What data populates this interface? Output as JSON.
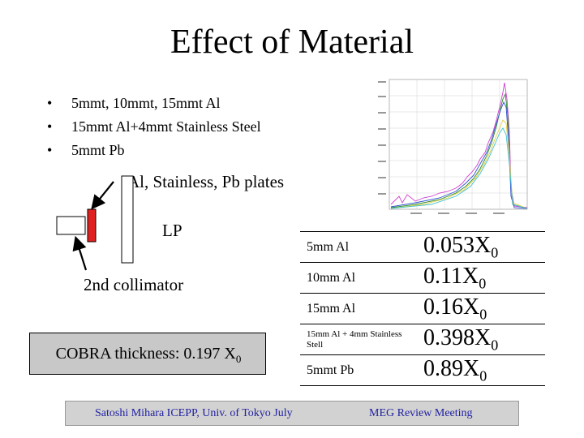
{
  "slide": {
    "title": "Effect of Material",
    "bullets": [
      "5mmt, 10mmt, 15mmt Al",
      "15mmt Al+4mmt Stainless Steel",
      "5mmt Pb"
    ],
    "bullet_glyph": "•"
  },
  "diagram": {
    "plates_label": "Al, Stainless, Pb plates",
    "lp_label": "LP",
    "collimator_label": "2nd collimator",
    "plate_color": "#e02020"
  },
  "cobra": {
    "text": "COBRA thickness: 0.197 X",
    "sub": "0"
  },
  "materials": [
    {
      "name": "5mm Al",
      "value": "0.053X",
      "sub": "0"
    },
    {
      "name": "10mm Al",
      "value": "0.11X",
      "sub": "0"
    },
    {
      "name": "15mm Al",
      "value": "0.16X",
      "sub": "0"
    },
    {
      "name": "15mm Al + 4mm Stainless Stell",
      "value": "0.398X",
      "sub": "0"
    },
    {
      "name": "5mmt Pb",
      "value": "0.89X",
      "sub": "0"
    }
  ],
  "footer": {
    "left": "Satoshi Mihara ICEPP, Univ. of Tokyo July",
    "right": "MEG Review Meeting",
    "text_color": "#1f1fa0"
  }
}
